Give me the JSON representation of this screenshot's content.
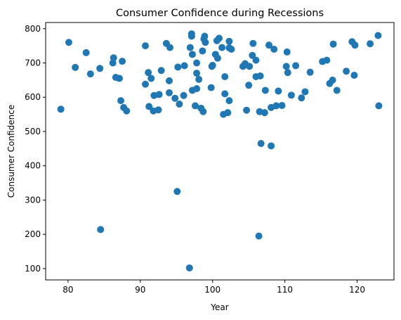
{
  "chart_data": {
    "type": "scatter",
    "title": "Consumer Confidence during Recessions",
    "xlabel": "Year",
    "ylabel": "Consumer Confidence",
    "xlim": [
      76.9,
      125.1
    ],
    "ylim": [
      67,
      818
    ],
    "xticks": [
      80,
      90,
      100,
      110,
      120
    ],
    "yticks": [
      100,
      200,
      300,
      400,
      500,
      600,
      700,
      800
    ],
    "grid": false,
    "marker_color": "#1f77b4",
    "points": [
      {
        "x": 79.0,
        "y": 565
      },
      {
        "x": 80.1,
        "y": 760
      },
      {
        "x": 81.0,
        "y": 687
      },
      {
        "x": 82.5,
        "y": 730
      },
      {
        "x": 83.1,
        "y": 668
      },
      {
        "x": 84.4,
        "y": 684
      },
      {
        "x": 84.5,
        "y": 214
      },
      {
        "x": 86.2,
        "y": 700
      },
      {
        "x": 86.3,
        "y": 715
      },
      {
        "x": 86.6,
        "y": 658
      },
      {
        "x": 87.1,
        "y": 655
      },
      {
        "x": 87.3,
        "y": 590
      },
      {
        "x": 87.5,
        "y": 705
      },
      {
        "x": 87.7,
        "y": 570
      },
      {
        "x": 88.1,
        "y": 560
      },
      {
        "x": 90.7,
        "y": 750
      },
      {
        "x": 90.7,
        "y": 638
      },
      {
        "x": 91.1,
        "y": 672
      },
      {
        "x": 91.2,
        "y": 573
      },
      {
        "x": 91.5,
        "y": 655
      },
      {
        "x": 91.8,
        "y": 560
      },
      {
        "x": 91.9,
        "y": 605
      },
      {
        "x": 92.5,
        "y": 563
      },
      {
        "x": 92.6,
        "y": 608
      },
      {
        "x": 92.9,
        "y": 678
      },
      {
        "x": 93.6,
        "y": 757
      },
      {
        "x": 94.0,
        "y": 613
      },
      {
        "x": 94.0,
        "y": 648
      },
      {
        "x": 94.1,
        "y": 745
      },
      {
        "x": 94.8,
        "y": 597
      },
      {
        "x": 95.1,
        "y": 325
      },
      {
        "x": 95.2,
        "y": 688
      },
      {
        "x": 95.4,
        "y": 580
      },
      {
        "x": 96.1,
        "y": 692
      },
      {
        "x": 96.0,
        "y": 605
      },
      {
        "x": 96.8,
        "y": 102
      },
      {
        "x": 96.9,
        "y": 745
      },
      {
        "x": 97.1,
        "y": 778
      },
      {
        "x": 97.1,
        "y": 785
      },
      {
        "x": 97.2,
        "y": 620
      },
      {
        "x": 97.2,
        "y": 725
      },
      {
        "x": 97.6,
        "y": 575
      },
      {
        "x": 97.8,
        "y": 625
      },
      {
        "x": 97.8,
        "y": 700
      },
      {
        "x": 97.8,
        "y": 670
      },
      {
        "x": 98.1,
        "y": 652
      },
      {
        "x": 98.4,
        "y": 568
      },
      {
        "x": 98.6,
        "y": 735
      },
      {
        "x": 98.7,
        "y": 558
      },
      {
        "x": 98.8,
        "y": 770
      },
      {
        "x": 98.9,
        "y": 778
      },
      {
        "x": 99.0,
        "y": 760
      },
      {
        "x": 99.8,
        "y": 628
      },
      {
        "x": 99.9,
        "y": 690
      },
      {
        "x": 100.0,
        "y": 693
      },
      {
        "x": 100.4,
        "y": 725
      },
      {
        "x": 100.6,
        "y": 765
      },
      {
        "x": 100.7,
        "y": 714
      },
      {
        "x": 100.9,
        "y": 772
      },
      {
        "x": 101.5,
        "y": 550
      },
      {
        "x": 101.3,
        "y": 745
      },
      {
        "x": 101.7,
        "y": 610
      },
      {
        "x": 101.7,
        "y": 660
      },
      {
        "x": 102.1,
        "y": 555
      },
      {
        "x": 102.3,
        "y": 590
      },
      {
        "x": 102.3,
        "y": 763
      },
      {
        "x": 102.3,
        "y": 744
      },
      {
        "x": 102.6,
        "y": 740
      },
      {
        "x": 104.2,
        "y": 690
      },
      {
        "x": 104.5,
        "y": 698
      },
      {
        "x": 104.7,
        "y": 562
      },
      {
        "x": 105.0,
        "y": 635
      },
      {
        "x": 105.1,
        "y": 690
      },
      {
        "x": 105.5,
        "y": 722
      },
      {
        "x": 105.6,
        "y": 757
      },
      {
        "x": 106.0,
        "y": 660
      },
      {
        "x": 106.0,
        "y": 708
      },
      {
        "x": 106.5,
        "y": 558
      },
      {
        "x": 106.7,
        "y": 465
      },
      {
        "x": 106.6,
        "y": 662
      },
      {
        "x": 106.4,
        "y": 195
      },
      {
        "x": 107.2,
        "y": 555
      },
      {
        "x": 107.3,
        "y": 620
      },
      {
        "x": 107.8,
        "y": 752
      },
      {
        "x": 108.1,
        "y": 458
      },
      {
        "x": 108.1,
        "y": 570
      },
      {
        "x": 108.5,
        "y": 740
      },
      {
        "x": 108.8,
        "y": 575
      },
      {
        "x": 109.1,
        "y": 618
      },
      {
        "x": 109.6,
        "y": 576
      },
      {
        "x": 110.2,
        "y": 690
      },
      {
        "x": 110.3,
        "y": 732
      },
      {
        "x": 110.4,
        "y": 672
      },
      {
        "x": 110.9,
        "y": 606
      },
      {
        "x": 111.5,
        "y": 692
      },
      {
        "x": 112.3,
        "y": 598
      },
      {
        "x": 112.8,
        "y": 616
      },
      {
        "x": 113.5,
        "y": 673
      },
      {
        "x": 115.2,
        "y": 704
      },
      {
        "x": 115.8,
        "y": 708
      },
      {
        "x": 116.2,
        "y": 640
      },
      {
        "x": 116.6,
        "y": 650
      },
      {
        "x": 116.7,
        "y": 755
      },
      {
        "x": 117.2,
        "y": 620
      },
      {
        "x": 118.5,
        "y": 676
      },
      {
        "x": 119.3,
        "y": 762
      },
      {
        "x": 119.6,
        "y": 664
      },
      {
        "x": 119.7,
        "y": 752
      },
      {
        "x": 121.8,
        "y": 756
      },
      {
        "x": 122.9,
        "y": 780
      },
      {
        "x": 123.0,
        "y": 575
      }
    ]
  }
}
